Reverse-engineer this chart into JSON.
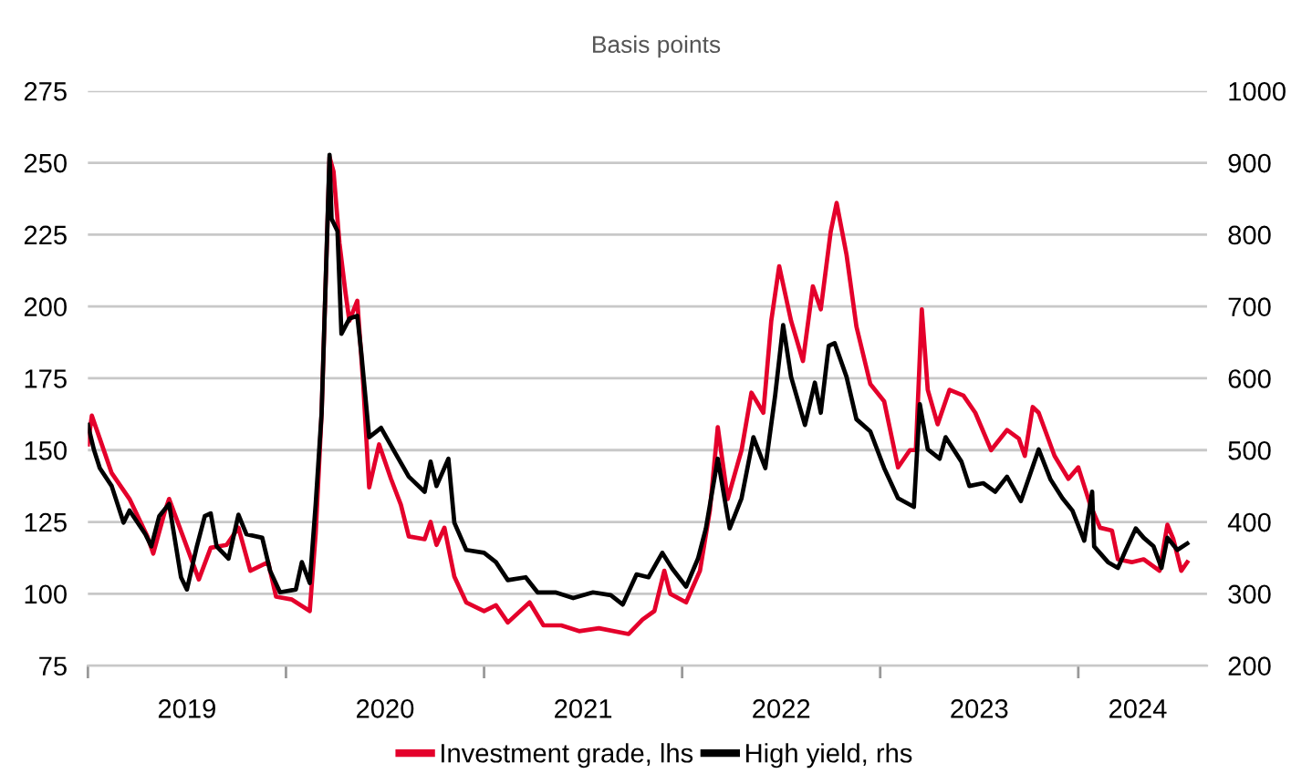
{
  "chart_data": {
    "type": "line",
    "subtitle": "Basis points",
    "xlim": [
      2019,
      2024.65
    ],
    "xticks": [
      {
        "value": 2019,
        "label": null
      },
      {
        "value": 2019.5,
        "label": "2019"
      },
      {
        "value": 2020,
        "label": null
      },
      {
        "value": 2020.5,
        "label": "2020"
      },
      {
        "value": 2021,
        "label": null
      },
      {
        "value": 2021.5,
        "label": "2021"
      },
      {
        "value": 2022,
        "label": null
      },
      {
        "value": 2022.5,
        "label": "2022"
      },
      {
        "value": 2023,
        "label": null
      },
      {
        "value": 2023.5,
        "label": "2023"
      },
      {
        "value": 2024,
        "label": null
      },
      {
        "value": 2024.3,
        "label": "2024"
      }
    ],
    "ylim": [
      75,
      275
    ],
    "yticks": [
      75,
      100,
      125,
      150,
      175,
      200,
      225,
      250,
      275
    ],
    "y2lim": [
      200,
      1000
    ],
    "y2ticks": [
      200,
      300,
      400,
      500,
      600,
      700,
      800,
      900,
      1000
    ],
    "grid": "y",
    "legend": "bottom",
    "line_style": "solid",
    "marker": "none",
    "series": [
      {
        "name": "Investment grade, lhs",
        "color": "#e4002b",
        "x": [
          2019.0,
          2019.02,
          2019.06,
          2019.12,
          2019.21,
          2019.3,
          2019.33,
          2019.39,
          2019.41,
          2019.48,
          2019.56,
          2019.62,
          2019.7,
          2019.76,
          2019.82,
          2019.91,
          2019.95,
          2020.03,
          2020.12,
          2020.15,
          2020.18,
          2020.22,
          2020.24,
          2020.27,
          2020.3,
          2020.32,
          2020.36,
          2020.39,
          2020.42,
          2020.47,
          2020.53,
          2020.58,
          2020.62,
          2020.7,
          2020.73,
          2020.76,
          2020.8,
          2020.85,
          2020.91,
          2021.0,
          2021.06,
          2021.12,
          2021.23,
          2021.3,
          2021.39,
          2021.48,
          2021.58,
          2021.73,
          2021.8,
          2021.86,
          2021.91,
          2021.94,
          2022.02,
          2022.09,
          2022.14,
          2022.18,
          2022.23,
          2022.3,
          2022.35,
          2022.41,
          2022.45,
          2022.49,
          2022.55,
          2022.61,
          2022.66,
          2022.7,
          2022.75,
          2022.78,
          2022.83,
          2022.88,
          2022.95,
          2023.02,
          2023.09,
          2023.15,
          2023.18,
          2023.21,
          2023.24,
          2023.29,
          2023.35,
          2023.42,
          2023.48,
          2023.56,
          2023.64,
          2023.7,
          2023.73,
          2023.77,
          2023.8,
          2023.88,
          2023.95,
          2024.0,
          2024.06,
          2024.11,
          2024.17,
          2024.2,
          2024.27,
          2024.33,
          2024.41,
          2024.45,
          2024.48,
          2024.52,
          2024.55
        ],
        "values": [
          152,
          162,
          154,
          142,
          133,
          120,
          114,
          129,
          133,
          120,
          105,
          116,
          117,
          123,
          108,
          111,
          99,
          98,
          94,
          121,
          163,
          252,
          247,
          222,
          205,
          195,
          202,
          173,
          137,
          152,
          140,
          131,
          120,
          119,
          125,
          117,
          123,
          106,
          97,
          94,
          96,
          90,
          97,
          89,
          89,
          87,
          88,
          86,
          91,
          94,
          108,
          100,
          97,
          108,
          129,
          158,
          133,
          150,
          170,
          163,
          195,
          214,
          195,
          181,
          207,
          199,
          226,
          236,
          218,
          193,
          173,
          167,
          144,
          150,
          150,
          199,
          171,
          159,
          171,
          169,
          163,
          150,
          157,
          154,
          148,
          165,
          163,
          148,
          140,
          144,
          131,
          123,
          122,
          112,
          111,
          112,
          108,
          124,
          119,
          108,
          111
        ]
      },
      {
        "name": "High yield, rhs",
        "color": "#000000",
        "axis": "y2",
        "x": [
          2019.0,
          2019.03,
          2019.06,
          2019.12,
          2019.18,
          2019.21,
          2019.29,
          2019.32,
          2019.36,
          2019.41,
          2019.47,
          2019.5,
          2019.55,
          2019.59,
          2019.62,
          2019.65,
          2019.71,
          2019.76,
          2019.8,
          2019.88,
          2019.92,
          2019.97,
          2020.05,
          2020.08,
          2020.12,
          2020.15,
          2020.18,
          2020.22,
          2020.23,
          2020.26,
          2020.28,
          2020.32,
          2020.36,
          2020.38,
          2020.42,
          2020.48,
          2020.56,
          2020.62,
          2020.7,
          2020.73,
          2020.76,
          2020.82,
          2020.85,
          2020.91,
          2021.0,
          2021.06,
          2021.12,
          2021.21,
          2021.27,
          2021.36,
          2021.45,
          2021.55,
          2021.64,
          2021.7,
          2021.77,
          2021.83,
          2021.9,
          2021.95,
          2022.02,
          2022.08,
          2022.12,
          2022.18,
          2022.24,
          2022.3,
          2022.36,
          2022.42,
          2022.47,
          2022.51,
          2022.55,
          2022.62,
          2022.67,
          2022.7,
          2022.74,
          2022.77,
          2022.83,
          2022.88,
          2022.95,
          2023.02,
          2023.09,
          2023.17,
          2023.2,
          2023.24,
          2023.3,
          2023.33,
          2023.41,
          2023.45,
          2023.52,
          2023.58,
          2023.64,
          2023.71,
          2023.8,
          2023.86,
          2023.92,
          2023.97,
          2024.03,
          2024.07,
          2024.08,
          2024.15,
          2024.2,
          2024.24,
          2024.29,
          2024.33,
          2024.38,
          2024.42,
          2024.45,
          2024.5,
          2024.55
        ],
        "values": [
          535,
          501,
          475,
          450,
          399,
          416,
          383,
          366,
          408,
          425,
          323,
          306,
          366,
          408,
          412,
          366,
          349,
          410,
          383,
          378,
          332,
          302,
          306,
          344,
          315,
          425,
          552,
          911,
          822,
          805,
          662,
          683,
          687,
          636,
          518,
          531,
          492,
          463,
          442,
          484,
          450,
          488,
          399,
          361,
          357,
          344,
          319,
          323,
          302,
          302,
          294,
          302,
          298,
          285,
          327,
          323,
          357,
          335,
          310,
          349,
          391,
          488,
          391,
          433,
          518,
          475,
          577,
          674,
          602,
          535,
          594,
          552,
          645,
          649,
          602,
          543,
          526,
          475,
          433,
          421,
          564,
          501,
          488,
          518,
          484,
          450,
          454,
          442,
          463,
          429,
          501,
          459,
          433,
          416,
          374,
          442,
          366,
          344,
          336,
          361,
          391,
          378,
          366,
          336,
          378,
          361,
          370
        ]
      }
    ]
  }
}
